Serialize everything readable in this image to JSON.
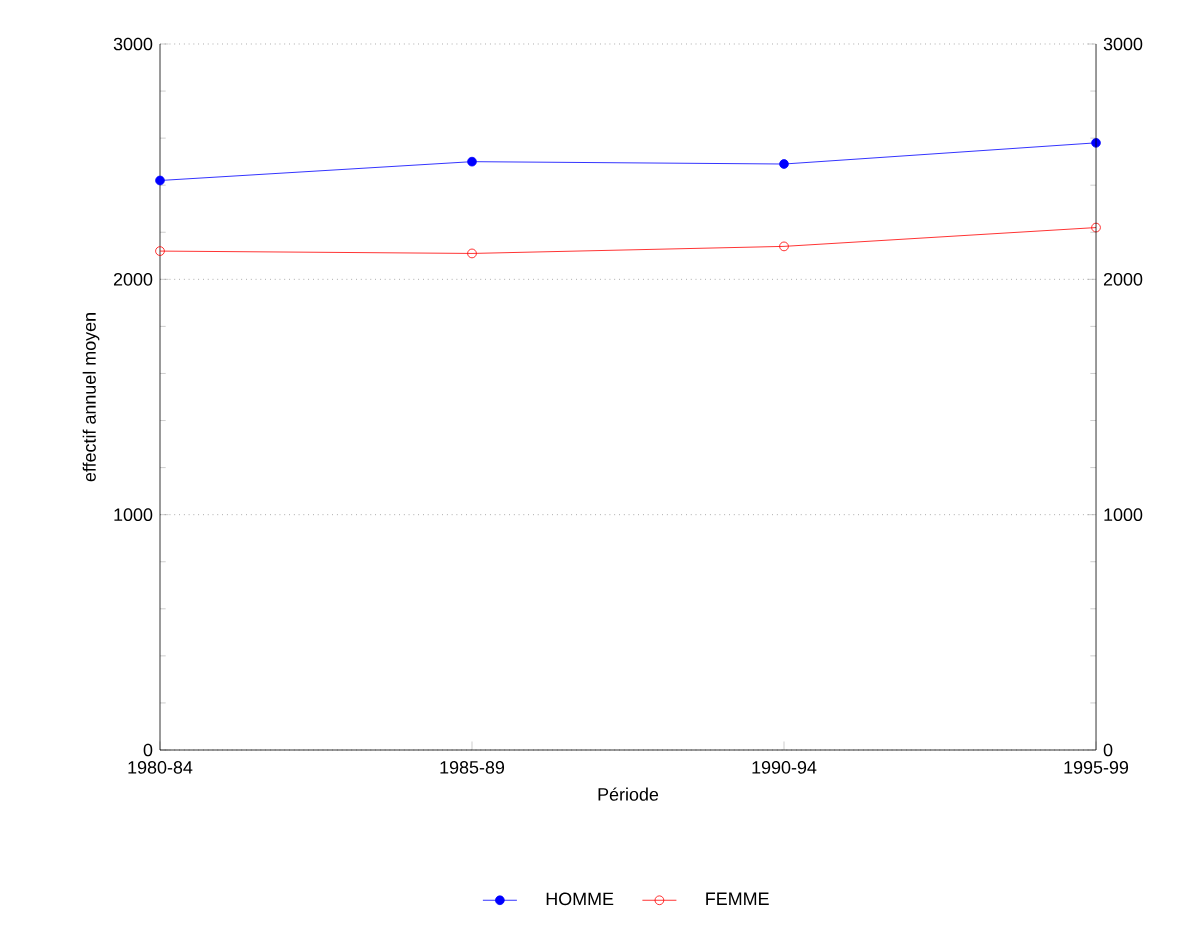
{
  "chart_data": {
    "type": "line",
    "xlabel": "Période",
    "ylabel": "effectif annuel moyen",
    "categories": [
      "1980-84",
      "1985-89",
      "1990-94",
      "1995-99"
    ],
    "series": [
      {
        "name": "HOMME",
        "color": "#0000ff",
        "values": [
          2420,
          2500,
          2490,
          2580
        ]
      },
      {
        "name": "FEMME",
        "color": "#ff0000",
        "values": [
          2120,
          2110,
          2140,
          2220
        ]
      }
    ],
    "ylim": [
      0,
      3000
    ],
    "yticks": [
      0,
      1000,
      2000,
      3000
    ],
    "y2lim": [
      0,
      3000
    ],
    "y2ticks": [
      0,
      1000,
      2000,
      3000
    ],
    "grid": "y",
    "legend": "bottom",
    "marker": "circle",
    "line_style": "solid"
  }
}
